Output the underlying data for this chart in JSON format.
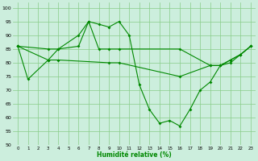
{
  "xlabel": "Humidité relative (%)",
  "ylabel": "",
  "bg_color": "#cceedd",
  "grid_color": "#88cc88",
  "line_color": "#008800",
  "line1": {
    "x": [
      0,
      1,
      3,
      4,
      6,
      7,
      8,
      9,
      10,
      11,
      12,
      13,
      14,
      15,
      16,
      17,
      18,
      19,
      20,
      21,
      22,
      23
    ],
    "y": [
      86,
      74,
      81,
      85,
      90,
      95,
      94,
      93,
      95,
      90,
      72,
      63,
      58,
      59,
      57,
      63,
      70,
      73,
      79,
      80,
      83,
      86
    ]
  },
  "line2": {
    "x": [
      0,
      3,
      4,
      6,
      7,
      8,
      9,
      10,
      16,
      19,
      20,
      21,
      22,
      23
    ],
    "y": [
      86,
      85,
      85,
      86,
      95,
      85,
      85,
      85,
      85,
      79,
      79,
      81,
      83,
      86
    ]
  },
  "line3": {
    "x": [
      0,
      3,
      4,
      9,
      10,
      16,
      19,
      20,
      21,
      22,
      23
    ],
    "y": [
      86,
      81,
      81,
      80,
      80,
      75,
      79,
      79,
      81,
      83,
      86
    ]
  },
  "ylim": [
    50,
    102
  ],
  "xlim": [
    -0.5,
    23.5
  ],
  "yticks": [
    50,
    55,
    60,
    65,
    70,
    75,
    80,
    85,
    90,
    95,
    100
  ],
  "xticks": [
    0,
    1,
    2,
    3,
    4,
    5,
    6,
    7,
    8,
    9,
    10,
    11,
    12,
    13,
    14,
    15,
    16,
    17,
    18,
    19,
    20,
    21,
    22,
    23
  ],
  "xtick_labels": [
    "0",
    "1",
    "2",
    "3",
    "4",
    "5",
    "6",
    "7",
    "8",
    "9",
    "10",
    "11",
    "12",
    "13",
    "14",
    "15",
    "16",
    "17",
    "18",
    "19",
    "20",
    "21",
    "22",
    "23"
  ],
  "ytick_labels": [
    "50",
    "55",
    "60",
    "65",
    "70",
    "75",
    "80",
    "85",
    "90",
    "95",
    "100"
  ]
}
